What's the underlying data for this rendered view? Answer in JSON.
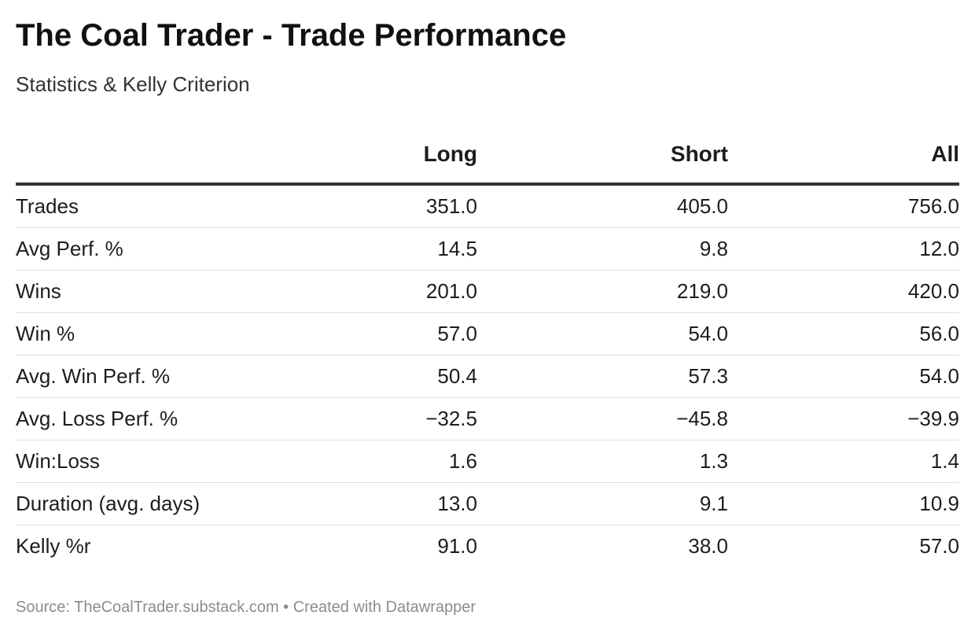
{
  "title": "The Coal Trader - Trade Performance",
  "subtitle": "Statistics & Kelly Criterion",
  "footer": "Source: TheCoalTrader.substack.com • Created with Datawrapper",
  "chart_data": {
    "type": "table",
    "title": "The Coal Trader - Trade Performance",
    "subtitle": "Statistics & Kelly Criterion",
    "columns": [
      "",
      "Long",
      "Short",
      "All"
    ],
    "rows": [
      {
        "label": "Trades",
        "values": [
          "351.0",
          "405.0",
          "756.0"
        ]
      },
      {
        "label": "Avg Perf. %",
        "values": [
          "14.5",
          "9.8",
          "12.0"
        ]
      },
      {
        "label": "Wins",
        "values": [
          "201.0",
          "219.0",
          "420.0"
        ]
      },
      {
        "label": "Win %",
        "values": [
          "57.0",
          "54.0",
          "56.0"
        ]
      },
      {
        "label": "Avg. Win Perf. %",
        "values": [
          "50.4",
          "57.3",
          "54.0"
        ]
      },
      {
        "label": "Avg. Loss Perf. %",
        "values": [
          "−32.5",
          "−45.8",
          "−39.9"
        ]
      },
      {
        "label": "Win:Loss",
        "values": [
          "1.6",
          "1.3",
          "1.4"
        ]
      },
      {
        "label": "Duration (avg. days)",
        "values": [
          "13.0",
          "9.1",
          "10.9"
        ]
      },
      {
        "label": "Kelly %r",
        "values": [
          "91.0",
          "38.0",
          "57.0"
        ]
      }
    ]
  }
}
